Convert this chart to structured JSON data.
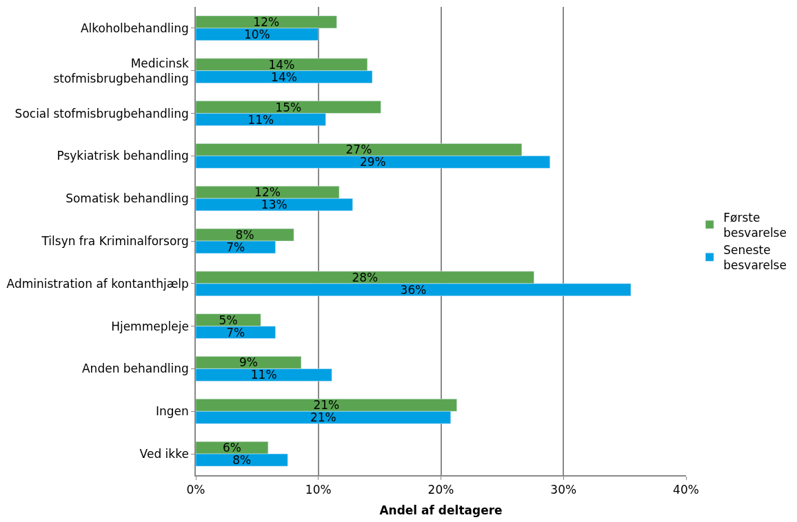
{
  "chart_data": {
    "type": "bar",
    "orientation": "horizontal",
    "xlabel": "Andel af deltagere",
    "categories": [
      "Alkoholbehandling",
      "Medicinsk stofmisbrugbehandling",
      "Social stofmisbrugbehandling",
      "Psykiatrisk behandling",
      "Somatisk behandling",
      "Tilsyn fra Kriminalforsorg",
      "Administration af kontanthjælp",
      "Hjemmepleje",
      "Anden behandling",
      "Ingen",
      "Ved ikke"
    ],
    "series": [
      {
        "name": "Første besvarelse",
        "color": "#5ba552",
        "values": [
          11.5,
          14.0,
          15.1,
          26.6,
          11.7,
          8.0,
          27.6,
          5.3,
          8.6,
          21.3,
          5.9
        ],
        "value_labels": [
          "12%",
          "14%",
          "15%",
          "27%",
          "12%",
          "8%",
          "28%",
          "5%",
          "9%",
          "21%",
          "6%"
        ]
      },
      {
        "name": "Seneste besvarelse",
        "color": "#00a0e3",
        "values": [
          10.0,
          14.4,
          10.6,
          28.9,
          12.8,
          6.5,
          35.5,
          6.5,
          11.1,
          20.8,
          7.5
        ],
        "value_labels": [
          "10%",
          "14%",
          "11%",
          "29%",
          "13%",
          "7%",
          "36%",
          "7%",
          "11%",
          "21%",
          "8%"
        ]
      }
    ],
    "xlim": [
      0,
      40
    ],
    "xticks": [
      {
        "value": 0,
        "label": "0%"
      },
      {
        "value": 10,
        "label": "10%"
      },
      {
        "value": 20,
        "label": "20%"
      },
      {
        "value": 30,
        "label": "30%"
      },
      {
        "value": 40,
        "label": "40%"
      }
    ],
    "grid": "x",
    "legend": "right"
  }
}
